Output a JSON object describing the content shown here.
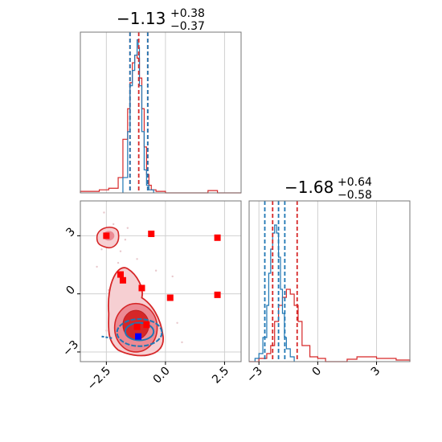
{
  "chart_data": [
    {
      "type": "histogram",
      "panel": "top-left marginal (parameter 1)",
      "title_main": "−1.13",
      "title_sup": "+0.38",
      "title_sub": "−0.37",
      "xlim": [
        -3.6,
        3.2
      ],
      "grid": true,
      "series": [
        {
          "color": "#d62728",
          "bins_x": [
            -3.6,
            -2.8,
            -2.4,
            -2.0,
            -1.8,
            -1.6,
            -1.5,
            -1.4,
            -1.3,
            -1.2,
            -1.1,
            -1.0,
            -0.9,
            -0.8,
            -0.7,
            -0.6,
            -0.4,
            0.0,
            1.8,
            2.2,
            3.2
          ],
          "counts": [
            0.01,
            0.02,
            0.03,
            0.1,
            0.35,
            0.55,
            0.72,
            0.85,
            0.9,
            0.88,
            0.75,
            0.55,
            0.3,
            0.12,
            0.05,
            0.02,
            0.01,
            0.0,
            0.015,
            0.0
          ]
        },
        {
          "color": "#1f77b4",
          "bins_x": [
            -1.8,
            -1.6,
            -1.5,
            -1.4,
            -1.3,
            -1.2,
            -1.15,
            -1.1,
            -1.0,
            -0.9,
            -0.8,
            -0.7,
            -0.5
          ],
          "counts": [
            0.1,
            0.4,
            0.7,
            0.8,
            0.9,
            1.0,
            0.95,
            0.7,
            0.4,
            0.15,
            0.05,
            0.02
          ]
        }
      ],
      "vlines": [
        {
          "x": -1.5,
          "color": "#d62728"
        },
        {
          "x": -1.13,
          "color": "#d62728"
        },
        {
          "x": -0.75,
          "color": "#d62728"
        },
        {
          "x": -1.5,
          "color": "#1f77b4"
        },
        {
          "x": -0.75,
          "color": "#1f77b4"
        }
      ]
    },
    {
      "type": "scatter-contour",
      "panel": "bottom-left 2D (param1 vs param2)",
      "xlim": [
        -3.6,
        3.2
      ],
      "ylim": [
        -3.5,
        4.8
      ],
      "xticks": [
        "−2.5",
        "0.0",
        "2.5"
      ],
      "xtick_values": [
        -2.5,
        0.0,
        2.5
      ],
      "yticks": [
        "−3",
        "0",
        "3"
      ],
      "ytick_values": [
        -3,
        0,
        3
      ],
      "grid": true,
      "points": [
        {
          "x": -2.5,
          "y": 3.0
        },
        {
          "x": -0.6,
          "y": 3.1
        },
        {
          "x": 2.2,
          "y": 2.9
        },
        {
          "x": -1.9,
          "y": 1.0
        },
        {
          "x": -1.8,
          "y": 0.7
        },
        {
          "x": -1.0,
          "y": 0.3
        },
        {
          "x": 0.2,
          "y": -0.2
        },
        {
          "x": 2.2,
          "y": -0.05
        },
        {
          "x": -1.2,
          "y": -1.7
        },
        {
          "x": -0.8,
          "y": -1.6
        }
      ],
      "blue_point": {
        "x": -1.15,
        "y": -2.2
      },
      "colors": {
        "red": "#d62728",
        "blue": "#1f77b4",
        "marker": "#ff0000",
        "blue_marker": "#0000ff"
      }
    },
    {
      "type": "histogram",
      "panel": "bottom-right marginal (parameter 2)",
      "title_main": "−1.68",
      "title_sup": "+0.64",
      "title_sub": "−0.58",
      "xlim": [
        -3.5,
        4.7
      ],
      "xticks": [
        "−3",
        "0",
        "3"
      ],
      "xtick_values": [
        -3,
        0,
        3
      ],
      "grid": true,
      "series": [
        {
          "color": "#d62728",
          "bins_x": [
            -3.5,
            -3.0,
            -2.6,
            -2.4,
            -2.2,
            -2.0,
            -1.8,
            -1.6,
            -1.4,
            -1.2,
            -1.0,
            -0.8,
            -0.4,
            0.0,
            0.4,
            1.5,
            2.0,
            3.0,
            3.5,
            4.0,
            4.7
          ],
          "counts": [
            0.0,
            0.02,
            0.05,
            0.1,
            0.25,
            0.35,
            0.4,
            0.45,
            0.42,
            0.35,
            0.25,
            0.1,
            0.03,
            0.02,
            0.0,
            0.015,
            0.03,
            0.02,
            0.02,
            0.01
          ]
        },
        {
          "color": "#1f77b4",
          "bins_x": [
            -3.2,
            -3.0,
            -2.8,
            -2.6,
            -2.5,
            -2.4,
            -2.3,
            -2.2,
            -2.1,
            -2.0,
            -1.9,
            -1.8,
            -1.7,
            -1.6,
            -1.4,
            -1.2
          ],
          "counts": [
            0.02,
            0.05,
            0.15,
            0.35,
            0.55,
            0.7,
            0.8,
            0.85,
            0.8,
            0.65,
            0.45,
            0.3,
            0.15,
            0.08,
            0.03
          ]
        }
      ],
      "vlines": [
        {
          "x": -2.7,
          "color": "#1f77b4"
        },
        {
          "x": -2.3,
          "color": "#d62728"
        },
        {
          "x": -2.0,
          "color": "#1f77b4"
        },
        {
          "x": -1.68,
          "color": "#1f77b4"
        },
        {
          "x": -1.05,
          "color": "#d62728"
        }
      ]
    }
  ]
}
